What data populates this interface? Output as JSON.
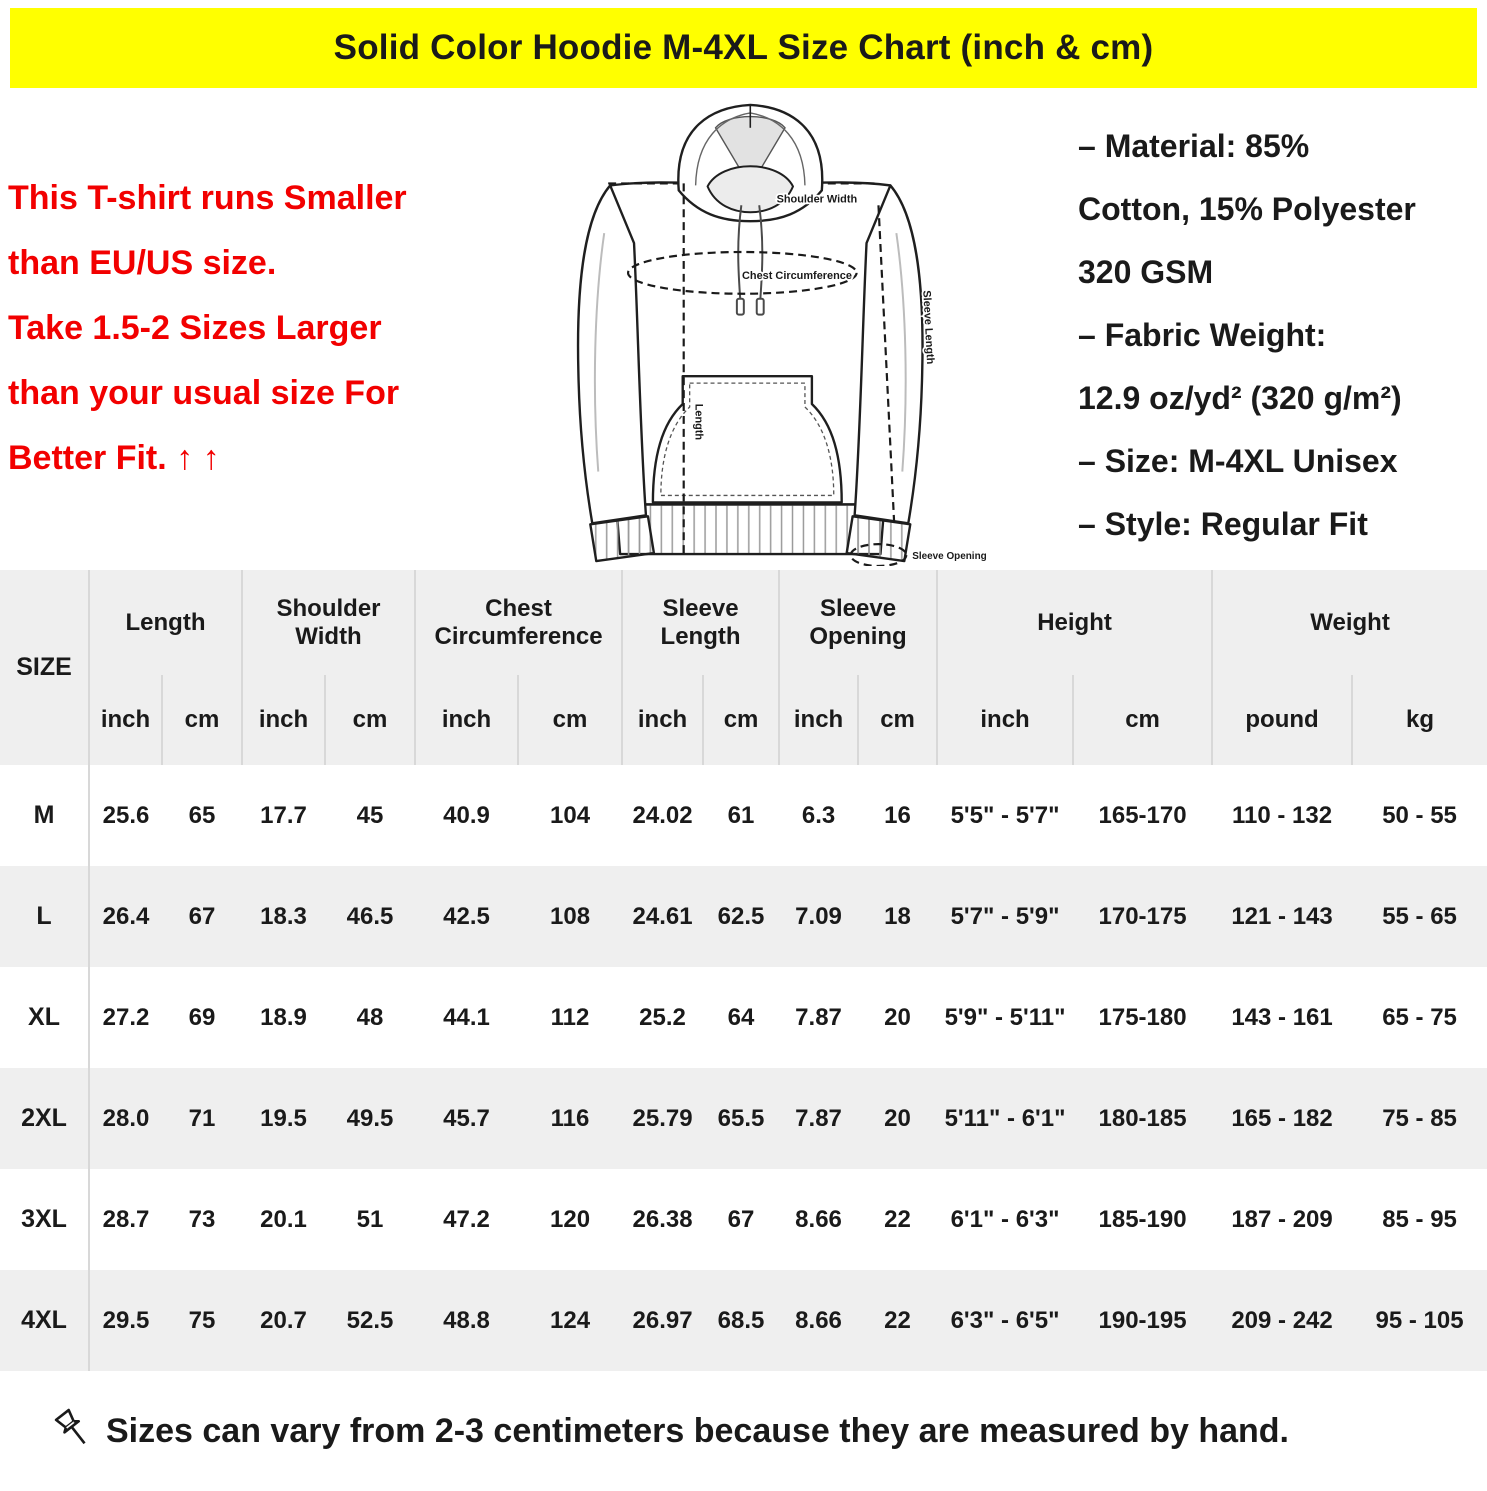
{
  "banner": {
    "title": "Solid Color Hoodie M-4XL Size Chart (inch & cm)",
    "background": "#ffff00"
  },
  "warning": {
    "color": "#f20000",
    "lines": [
      "This T-shirt runs Smaller",
      "than EU/US size.",
      "Take 1.5-2 Sizes Larger",
      "than your usual size For",
      "Better Fit."
    ],
    "arrows": "↑ ↑"
  },
  "diagram": {
    "labels": {
      "shoulder_width": "Shoulder Width",
      "chest_circumference": "Chest Circumference",
      "length": "Length",
      "sleeve_length": "Sleeve Length",
      "sleeve_opening": "Sleeve Opening"
    }
  },
  "product_info": {
    "lines": [
      "– Material: 85%",
      "Cotton, 15% Polyester",
      "320 GSM",
      "– Fabric Weight:",
      "12.9 oz/yd² (320 g/m²)",
      "– Size: M-4XL Unisex",
      "– Style: Regular Fit"
    ]
  },
  "size_table": {
    "corner_label": "SIZE",
    "column_groups": [
      {
        "label": "Length",
        "units": [
          "inch",
          "cm"
        ]
      },
      {
        "label": "Shoulder Width",
        "units": [
          "inch",
          "cm"
        ]
      },
      {
        "label": "Chest Circumference",
        "units": [
          "inch",
          "cm"
        ]
      },
      {
        "label": "Sleeve Length",
        "units": [
          "inch",
          "cm"
        ]
      },
      {
        "label": "Sleeve Opening",
        "units": [
          "inch",
          "cm"
        ]
      },
      {
        "label": "Height",
        "units": [
          "inch",
          "cm"
        ]
      },
      {
        "label": "Weight",
        "units": [
          "pound",
          "kg"
        ]
      }
    ],
    "rows": [
      {
        "size": "M",
        "values": [
          "25.6",
          "65",
          "17.7",
          "45",
          "40.9",
          "104",
          "24.02",
          "61",
          "6.3",
          "16",
          "5'5\" - 5'7\"",
          "165-170",
          "110 - 132",
          "50 - 55"
        ]
      },
      {
        "size": "L",
        "values": [
          "26.4",
          "67",
          "18.3",
          "46.5",
          "42.5",
          "108",
          "24.61",
          "62.5",
          "7.09",
          "18",
          "5'7\" - 5'9\"",
          "170-175",
          "121 - 143",
          "55 - 65"
        ]
      },
      {
        "size": "XL",
        "values": [
          "27.2",
          "69",
          "18.9",
          "48",
          "44.1",
          "112",
          "25.2",
          "64",
          "7.87",
          "20",
          "5'9\" - 5'11\"",
          "175-180",
          "143 - 161",
          "65 - 75"
        ]
      },
      {
        "size": "2XL",
        "values": [
          "28.0",
          "71",
          "19.5",
          "49.5",
          "45.7",
          "116",
          "25.79",
          "65.5",
          "7.87",
          "20",
          "5'11\" - 6'1\"",
          "180-185",
          "165 - 182",
          "75 - 85"
        ]
      },
      {
        "size": "3XL",
        "values": [
          "28.7",
          "73",
          "20.1",
          "51",
          "47.2",
          "120",
          "26.38",
          "67",
          "8.66",
          "22",
          "6'1\" - 6'3\"",
          "185-190",
          "187 - 209",
          "85 - 95"
        ]
      },
      {
        "size": "4XL",
        "values": [
          "29.5",
          "75",
          "20.7",
          "52.5",
          "48.8",
          "124",
          "26.97",
          "68.5",
          "8.66",
          "22",
          "6'3\" - 6'5\"",
          "190-195",
          "209 - 242",
          "95 - 105"
        ]
      }
    ]
  },
  "footnote": {
    "icon": "pushpin-icon",
    "text": "Sizes can vary from 2-3 centimeters because they are measured by hand."
  }
}
